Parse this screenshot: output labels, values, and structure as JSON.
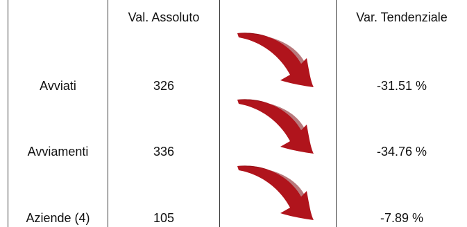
{
  "table": {
    "headers": {
      "label_col": "",
      "value_col": "Val. Assoluto",
      "trend_col": "",
      "variation_col": "Var. Tendenziale"
    },
    "rows": [
      {
        "label": "Avviati",
        "value": "326",
        "trend_icon": "down-arrow-icon",
        "variation": "-31.51 %"
      },
      {
        "label": "Avviamenti",
        "value": "336",
        "trend_icon": "down-arrow-icon",
        "variation": "-34.76 %"
      },
      {
        "label": "Aziende (4)",
        "value": "105",
        "trend_icon": "down-arrow-icon",
        "variation": "-7.89 %"
      }
    ]
  },
  "colors": {
    "arrow": "#b0141c",
    "arrow_dark": "#7d0b10",
    "rule": "#3a3a3a"
  }
}
